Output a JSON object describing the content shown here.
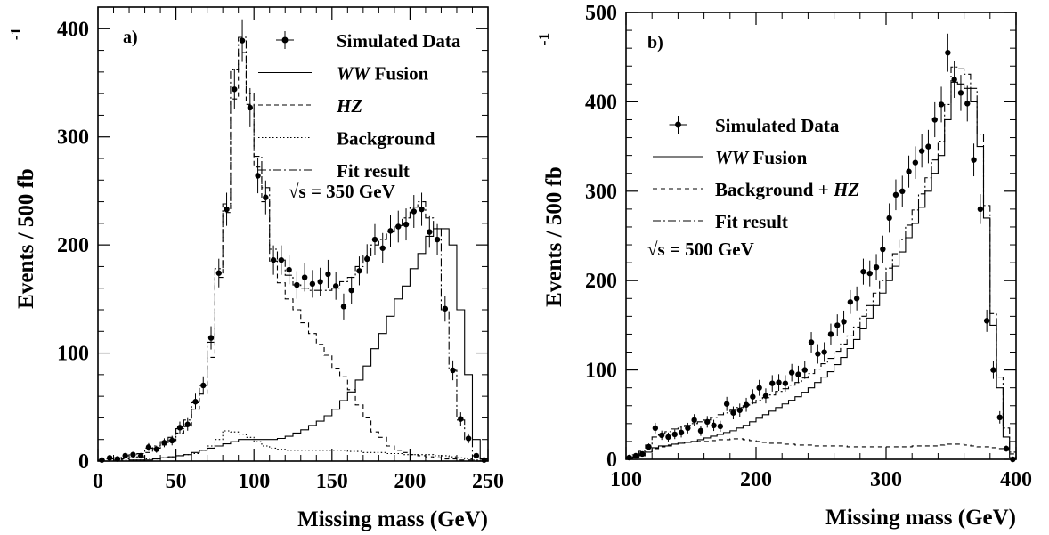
{
  "chart_data": [
    {
      "panel": "a)",
      "type": "line",
      "xlabel": "Missing mass (GeV)",
      "ylabel": "Events / 500 fb",
      "ylabel_superscript": "-1",
      "xlim": [
        0,
        250
      ],
      "ylim": [
        0,
        420
      ],
      "xticks": [
        0,
        50,
        100,
        150,
        200,
        250
      ],
      "yticks": [
        0,
        100,
        200,
        300,
        400
      ],
      "annotation": "= 350 GeV",
      "annotation_prefix": "√s",
      "legend_position": "top-right",
      "legend": [
        {
          "label": "Simulated Data",
          "style": "points"
        },
        {
          "label_italic": "WW",
          "label_rest": " Fusion",
          "style": "solid"
        },
        {
          "label_italic": "HZ",
          "label_rest": "",
          "style": "dashed"
        },
        {
          "label": "Background",
          "style": "dotted"
        },
        {
          "label": "Fit result",
          "style": "dashdot"
        }
      ],
      "bin_width": 5,
      "x": [
        2.5,
        7.5,
        12.5,
        17.5,
        22.5,
        27.5,
        32.5,
        37.5,
        42.5,
        47.5,
        52.5,
        57.5,
        62.5,
        67.5,
        72.5,
        77.5,
        82.5,
        87.5,
        92.5,
        97.5,
        102.5,
        107.5,
        112.5,
        117.5,
        122.5,
        127.5,
        132.5,
        137.5,
        142.5,
        147.5,
        152.5,
        157.5,
        162.5,
        167.5,
        172.5,
        177.5,
        182.5,
        187.5,
        192.5,
        197.5,
        202.5,
        207.5,
        212.5,
        217.5,
        222.5,
        227.5,
        232.5,
        237.5,
        242.5,
        247.5
      ],
      "series": [
        {
          "name": "Simulated Data",
          "style": "points",
          "values": [
            1,
            3,
            2,
            5,
            6,
            5,
            13,
            11,
            17,
            19,
            31,
            34,
            55,
            70,
            114,
            174,
            233,
            344,
            389,
            327,
            264,
            244,
            186,
            186,
            177,
            163,
            170,
            164,
            166,
            173,
            162,
            143,
            158,
            176,
            187,
            205,
            197,
            213,
            217,
            219,
            231,
            233,
            212,
            205,
            141,
            84,
            39,
            21,
            5,
            1
          ],
          "errors": [
            1,
            2,
            1.5,
            2.2,
            2.5,
            2.3,
            3.6,
            3.3,
            4.1,
            4.4,
            5.6,
            5.8,
            7.4,
            8.4,
            10.7,
            13.2,
            15.3,
            18.5,
            19.7,
            18.1,
            16.2,
            15.6,
            13.6,
            13.6,
            13.3,
            12.8,
            13,
            12.8,
            12.9,
            13.2,
            12.7,
            12,
            12.6,
            13.3,
            13.7,
            14.3,
            14,
            14.6,
            14.7,
            14.8,
            15.2,
            15.3,
            14.6,
            14.3,
            11.9,
            9.2,
            6.2,
            4.6,
            2.2,
            1
          ]
        },
        {
          "name": "WW Fusion",
          "style": "solid",
          "values": [
            0,
            0,
            0,
            0,
            1,
            1,
            1,
            2,
            3,
            4,
            5,
            6,
            8,
            10,
            12,
            14,
            16,
            18,
            20,
            20,
            20,
            20,
            20,
            21,
            23,
            26,
            29,
            33,
            37,
            42,
            48,
            56,
            64,
            75,
            88,
            104,
            118,
            134,
            150,
            162,
            178,
            192,
            208,
            215,
            215,
            200,
            140,
            80,
            20,
            2
          ]
        },
        {
          "name": "HZ",
          "style": "dashed",
          "values": [
            0,
            0,
            1,
            2,
            3,
            4,
            8,
            12,
            15,
            19,
            26,
            32,
            48,
            62,
            96,
            170,
            230,
            335,
            378,
            330,
            272,
            240,
            185,
            165,
            150,
            140,
            128,
            118,
            108,
            98,
            86,
            78,
            66,
            52,
            40,
            27,
            22,
            14,
            10,
            8,
            6,
            5,
            4,
            3,
            2,
            2,
            1,
            1,
            0,
            0
          ]
        },
        {
          "name": "Background",
          "style": "dotted",
          "values": [
            0,
            0,
            0,
            1,
            1,
            1,
            2,
            2,
            3,
            4,
            5,
            6,
            7,
            10,
            14,
            20,
            28,
            27,
            25,
            22,
            18,
            14,
            12,
            11,
            10,
            10,
            10,
            10,
            10,
            10,
            10,
            10,
            9,
            9,
            8,
            8,
            8,
            7,
            7,
            6,
            6,
            6,
            6,
            5,
            5,
            4,
            3,
            2,
            1,
            0
          ]
        },
        {
          "name": "Fit result",
          "style": "dashdot",
          "values": [
            1,
            2,
            3,
            5,
            6,
            7,
            12,
            14,
            18,
            22,
            30,
            38,
            54,
            70,
            110,
            178,
            238,
            362,
            392,
            340,
            282,
            253,
            196,
            186,
            172,
            163,
            160,
            158,
            158,
            158,
            160,
            166,
            170,
            180,
            190,
            200,
            205,
            212,
            218,
            225,
            235,
            240,
            225,
            215,
            140,
            84,
            38,
            20,
            5,
            1
          ]
        }
      ]
    },
    {
      "panel": "b)",
      "type": "line",
      "xlabel": "Missing mass (GeV)",
      "ylabel": "Events / 500 fb",
      "ylabel_superscript": "-1",
      "xlim": [
        100,
        400
      ],
      "ylim": [
        0,
        500
      ],
      "xticks": [
        100,
        200,
        300,
        400
      ],
      "yticks": [
        0,
        100,
        200,
        300,
        400,
        500
      ],
      "annotation": "= 500 GeV",
      "annotation_prefix": "√s",
      "legend_position": "top-left",
      "legend": [
        {
          "label": "Simulated Data",
          "style": "points"
        },
        {
          "label_italic": "WW",
          "label_rest": " Fusion",
          "style": "solid"
        },
        {
          "label": "Background + ",
          "label_italic_after": "HZ",
          "style": "dashed"
        },
        {
          "label": "Fit result",
          "style": "dashdot"
        }
      ],
      "bin_width": 5,
      "x": [
        102.5,
        107.5,
        112.5,
        117.5,
        122.5,
        127.5,
        132.5,
        137.5,
        142.5,
        147.5,
        152.5,
        157.5,
        162.5,
        167.5,
        172.5,
        177.5,
        182.5,
        187.5,
        192.5,
        197.5,
        202.5,
        207.5,
        212.5,
        217.5,
        222.5,
        227.5,
        232.5,
        237.5,
        242.5,
        247.5,
        252.5,
        257.5,
        262.5,
        267.5,
        272.5,
        277.5,
        282.5,
        287.5,
        292.5,
        297.5,
        302.5,
        307.5,
        312.5,
        317.5,
        322.5,
        327.5,
        332.5,
        337.5,
        342.5,
        347.5,
        352.5,
        357.5,
        362.5,
        367.5,
        372.5,
        377.5,
        382.5,
        387.5,
        392.5,
        397.5
      ],
      "series": [
        {
          "name": "Simulated Data",
          "style": "points",
          "values": [
            2,
            4,
            6,
            14,
            35,
            27,
            25,
            28,
            30,
            35,
            44,
            32,
            42,
            38,
            37,
            62,
            52,
            55,
            61,
            70,
            80,
            71,
            85,
            86,
            85,
            97,
            95,
            100,
            131,
            118,
            120,
            140,
            150,
            154,
            176,
            180,
            210,
            208,
            215,
            235,
            270,
            296,
            300,
            322,
            332,
            345,
            350,
            380,
            397,
            455,
            425,
            410,
            398,
            335,
            280,
            155,
            100,
            47,
            12,
            0
          ],
          "errors": [
            1.4,
            2,
            2.4,
            3.7,
            5.9,
            5.2,
            5,
            5.3,
            5.5,
            5.9,
            6.6,
            5.7,
            6.5,
            6.2,
            6.1,
            7.9,
            7.2,
            7.4,
            7.8,
            8.4,
            8.9,
            8.4,
            9.2,
            9.3,
            9.2,
            9.8,
            9.7,
            10,
            11.4,
            10.9,
            11,
            11.8,
            12.2,
            12.4,
            13.3,
            13.4,
            14.5,
            14.4,
            14.7,
            15.3,
            16.4,
            17.2,
            17.3,
            17.9,
            18.2,
            18.6,
            18.7,
            19.5,
            19.9,
            21.3,
            20.6,
            20.2,
            19.9,
            18.3,
            16.7,
            12.4,
            10,
            6.9,
            3.5,
            0
          ]
        },
        {
          "name": "WW Fusion",
          "style": "solid",
          "values": [
            1,
            2,
            4,
            8,
            13,
            15,
            15,
            17,
            18,
            19,
            20,
            22,
            24,
            26,
            28,
            30,
            32,
            35,
            38,
            42,
            46,
            50,
            54,
            58,
            62,
            66,
            70,
            75,
            80,
            86,
            92,
            98,
            106,
            114,
            124,
            134,
            146,
            158,
            172,
            186,
            200,
            216,
            232,
            248,
            264,
            282,
            300,
            320,
            340,
            380,
            422,
            420,
            415,
            400,
            350,
            270,
            150,
            80,
            25,
            2
          ]
        },
        {
          "name": "Background + HZ",
          "style": "dashed",
          "values": [
            2,
            3,
            5,
            8,
            12,
            14,
            16,
            17,
            18,
            19,
            20,
            20,
            20,
            21,
            22,
            22,
            23,
            23,
            22,
            21,
            20,
            19,
            18,
            18,
            17,
            17,
            16,
            16,
            16,
            15,
            15,
            15,
            15,
            15,
            14,
            14,
            14,
            14,
            14,
            14,
            14,
            14,
            14,
            14,
            15,
            15,
            15,
            15,
            16,
            17,
            17,
            17,
            16,
            15,
            14,
            14,
            13,
            12,
            10,
            6
          ]
        },
        {
          "name": "Fit result",
          "style": "dashdot",
          "values": [
            3,
            5,
            9,
            16,
            25,
            29,
            31,
            34,
            36,
            38,
            40,
            42,
            44,
            47,
            50,
            52,
            55,
            58,
            60,
            63,
            66,
            69,
            72,
            76,
            79,
            83,
            86,
            91,
            96,
            101,
            107,
            113,
            121,
            129,
            138,
            148,
            160,
            172,
            186,
            200,
            214,
            230,
            246,
            262,
            279,
            297,
            315,
            335,
            356,
            397,
            439,
            437,
            431,
            415,
            364,
            284,
            163,
            92,
            35,
            8
          ]
        }
      ]
    }
  ]
}
